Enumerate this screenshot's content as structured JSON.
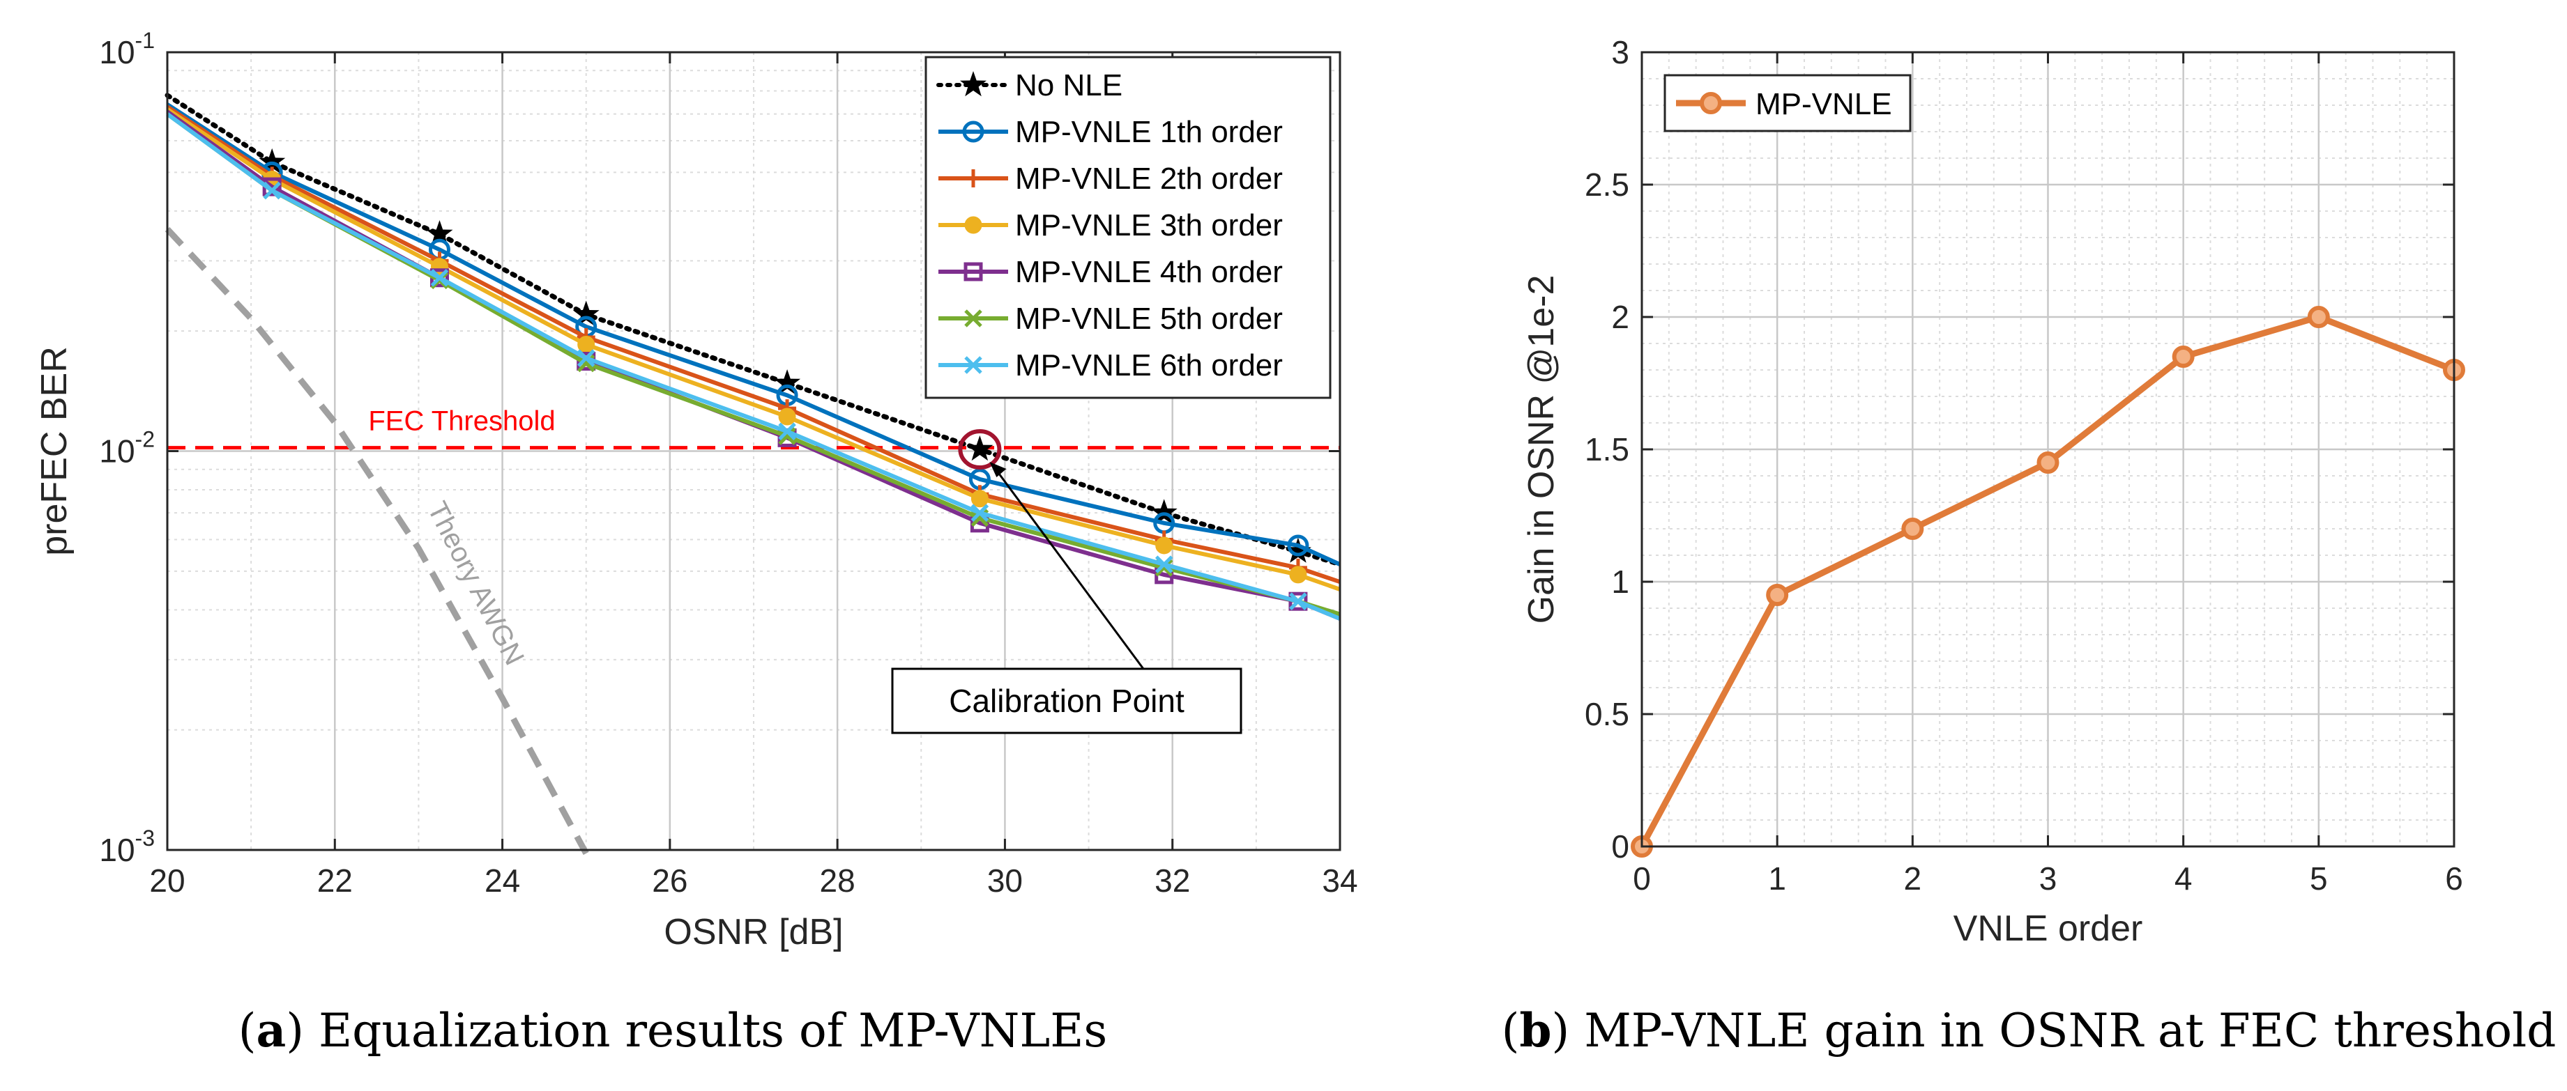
{
  "chart_data": [
    {
      "id": "a",
      "type": "line",
      "yscale": "log",
      "xlabel": "OSNR [dB]",
      "ylabel": "preFEC BER",
      "xlim": [
        20,
        34
      ],
      "ylim_exp": [
        -3,
        -1
      ],
      "xticks": [
        20,
        22,
        24,
        26,
        28,
        30,
        32,
        34
      ],
      "xtick_labels": [
        "20",
        "22",
        "24",
        "26",
        "28",
        "30",
        "32",
        "34"
      ],
      "ytick_exps": [
        -3,
        -2,
        -1
      ],
      "ytick_base": "10",
      "ytick_exp_labels": [
        "-3",
        "-2",
        "-1"
      ],
      "x": [
        20,
        21.25,
        23.25,
        25,
        27.4,
        29.7,
        31.9,
        33.5,
        34
      ],
      "series": [
        {
          "name": "No NLE",
          "color": "#000000",
          "marker": "star",
          "style": "dotted",
          "values": [
            0.078,
            0.053,
            0.035,
            0.022,
            0.0148,
            0.0101,
            0.007,
            0.0056,
            0.0052
          ]
        },
        {
          "name": "MP-VNLE 1th order",
          "color": "#0072BD",
          "marker": "circle",
          "style": "solid",
          "values": [
            0.074,
            0.05,
            0.032,
            0.0205,
            0.0138,
            0.0085,
            0.0066,
            0.0058,
            0.0052
          ]
        },
        {
          "name": "MP-VNLE 2th order",
          "color": "#D95319",
          "marker": "plus",
          "style": "solid",
          "values": [
            0.073,
            0.049,
            0.03,
            0.0193,
            0.0128,
            0.0078,
            0.006,
            0.0051,
            0.0047
          ]
        },
        {
          "name": "MP-VNLE 3th order",
          "color": "#EDB120",
          "marker": "dot",
          "style": "solid",
          "values": [
            0.072,
            0.048,
            0.029,
            0.0185,
            0.0122,
            0.0076,
            0.0058,
            0.0049,
            0.0045
          ]
        },
        {
          "name": "MP-VNLE 4th order",
          "color": "#7E2F8E",
          "marker": "square",
          "style": "solid",
          "values": [
            0.071,
            0.046,
            0.0272,
            0.0168,
            0.0108,
            0.0066,
            0.0049,
            0.0042,
            0.0038
          ]
        },
        {
          "name": "MP-VNLE 5th order",
          "color": "#77AC30",
          "marker": "x",
          "style": "solid",
          "values": [
            0.07,
            0.045,
            0.0268,
            0.0166,
            0.0109,
            0.0068,
            0.0051,
            0.0042,
            0.0039
          ]
        },
        {
          "name": "MP-VNLE 6th order",
          "color": "#4DBEEE",
          "marker": "x",
          "style": "solid",
          "values": [
            0.07,
            0.045,
            0.0272,
            0.0171,
            0.0112,
            0.007,
            0.0052,
            0.0042,
            0.0038
          ]
        }
      ],
      "theory": {
        "label": "Theory AWGN",
        "color": "#A0A0A0",
        "x": [
          20,
          21,
          22,
          23,
          24,
          25
        ],
        "values": [
          0.036,
          0.0215,
          0.0118,
          0.0057,
          0.0024,
          0.00098
        ]
      },
      "threshold": {
        "label": "FEC Threshold",
        "value": 0.0102,
        "color": "#FF0000"
      },
      "calibration": {
        "label": "Calibration Point",
        "x": 29.7,
        "y": 0.0101,
        "circle_color": "#A2142F"
      }
    },
    {
      "id": "b",
      "type": "line",
      "xlabel": "VNLE order",
      "ylabel": "Gain in OSNR @1e-2",
      "xlim": [
        0,
        6
      ],
      "ylim": [
        0,
        3
      ],
      "xticks": [
        0,
        1,
        2,
        3,
        4,
        5,
        6
      ],
      "xtick_labels": [
        "0",
        "1",
        "2",
        "3",
        "4",
        "5",
        "6"
      ],
      "yticks": [
        0,
        0.5,
        1,
        1.5,
        2,
        2.5,
        3
      ],
      "ytick_labels": [
        "0",
        "0.5",
        "1",
        "1.5",
        "2",
        "2.5",
        "3"
      ],
      "series": [
        {
          "name": "MP-VNLE",
          "color": "#E07B39",
          "marker": "circle",
          "x": [
            0,
            1,
            2,
            3,
            4,
            5,
            6
          ],
          "values": [
            0,
            0.95,
            1.2,
            1.45,
            1.85,
            2.0,
            1.8
          ]
        }
      ]
    }
  ],
  "captions": {
    "a_label": "a",
    "a_text": "Equalization results of MP-VNLEs",
    "b_label": "b",
    "b_text": "MP-VNLE gain in OSNR at FEC threshold"
  }
}
